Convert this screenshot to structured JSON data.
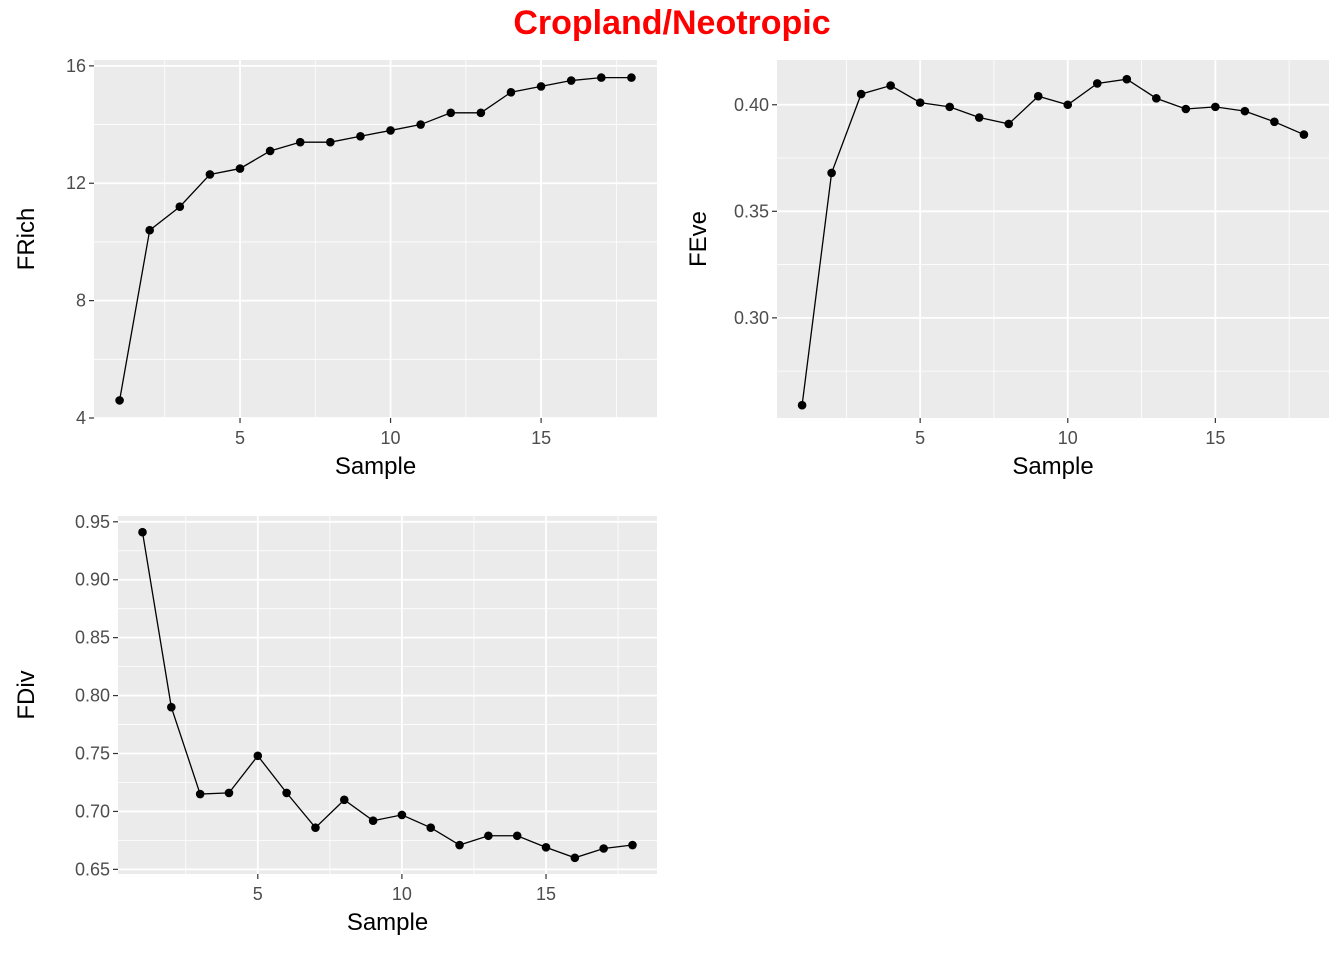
{
  "title": "Cropland/Neotropic",
  "colors": {
    "title": "#ff0000",
    "panel_background": "#ebebeb",
    "grid": "#ffffff",
    "series": "#000000",
    "tick_text": "#4d4d4d"
  },
  "chart_data": [
    {
      "type": "line",
      "markers": true,
      "xlabel": "Sample",
      "ylabel": "FRich",
      "x": [
        1,
        2,
        3,
        4,
        5,
        6,
        7,
        8,
        9,
        10,
        11,
        12,
        13,
        14,
        15,
        16,
        17,
        18
      ],
      "values": [
        4.6,
        10.4,
        11.2,
        12.3,
        12.5,
        13.1,
        13.4,
        13.4,
        13.6,
        13.8,
        14.0,
        14.4,
        14.4,
        15.1,
        15.3,
        15.5,
        15.6,
        15.6
      ],
      "xlim": [
        0.15,
        18.85
      ],
      "ylim": [
        4.0,
        16.2
      ],
      "x_major_ticks": [
        5,
        10,
        15
      ],
      "x_minor_ticks": [
        2.5,
        7.5,
        12.5,
        17.5
      ],
      "y_major_ticks": [
        4,
        8,
        12,
        16
      ],
      "y_minor_ticks": [
        6,
        10,
        14
      ],
      "x_tick_labels": [
        "5",
        "10",
        "15"
      ],
      "y_tick_labels": [
        "4",
        "8",
        "12",
        "16"
      ],
      "grid": true
    },
    {
      "type": "line",
      "markers": true,
      "xlabel": "Sample",
      "ylabel": "FEve",
      "x": [
        1,
        2,
        3,
        4,
        5,
        6,
        7,
        8,
        9,
        10,
        11,
        12,
        13,
        14,
        15,
        16,
        17,
        18
      ],
      "values": [
        0.259,
        0.368,
        0.405,
        0.409,
        0.401,
        0.399,
        0.394,
        0.391,
        0.404,
        0.4,
        0.41,
        0.412,
        0.403,
        0.398,
        0.399,
        0.397,
        0.392,
        0.386
      ],
      "xlim": [
        0.15,
        18.85
      ],
      "ylim": [
        0.253,
        0.421
      ],
      "x_major_ticks": [
        5,
        10,
        15
      ],
      "x_minor_ticks": [
        2.5,
        7.5,
        12.5,
        17.5
      ],
      "y_major_ticks": [
        0.3,
        0.35,
        0.4
      ],
      "y_minor_ticks": [
        0.275,
        0.325,
        0.375
      ],
      "x_tick_labels": [
        "5",
        "10",
        "15"
      ],
      "y_tick_labels": [
        "0.30",
        "0.35",
        "0.40"
      ],
      "grid": true
    },
    {
      "type": "line",
      "markers": true,
      "xlabel": "Sample",
      "ylabel": "FDiv",
      "x": [
        1,
        2,
        3,
        4,
        5,
        6,
        7,
        8,
        9,
        10,
        11,
        12,
        13,
        14,
        15,
        16,
        17,
        18
      ],
      "values": [
        0.941,
        0.79,
        0.715,
        0.716,
        0.748,
        0.716,
        0.686,
        0.71,
        0.692,
        0.697,
        0.686,
        0.671,
        0.679,
        0.679,
        0.669,
        0.66,
        0.668,
        0.671
      ],
      "xlim": [
        0.15,
        18.85
      ],
      "ylim": [
        0.646,
        0.955
      ],
      "x_major_ticks": [
        5,
        10,
        15
      ],
      "x_minor_ticks": [
        2.5,
        7.5,
        12.5,
        17.5
      ],
      "y_major_ticks": [
        0.65,
        0.7,
        0.75,
        0.8,
        0.85,
        0.9,
        0.95
      ],
      "y_minor_ticks": [
        0.675,
        0.725,
        0.775,
        0.825,
        0.875,
        0.925
      ],
      "x_tick_labels": [
        "5",
        "10",
        "15"
      ],
      "y_tick_labels": [
        "0.65",
        "0.70",
        "0.75",
        "0.80",
        "0.85",
        "0.90",
        "0.95"
      ],
      "grid": true
    }
  ]
}
